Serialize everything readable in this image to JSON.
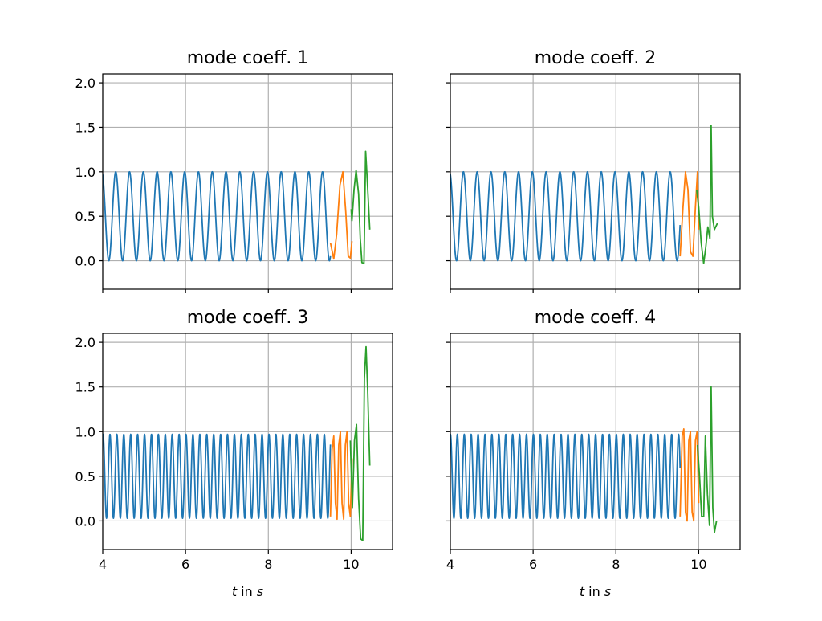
{
  "chart_data": [
    {
      "type": "line",
      "title": "mode coeff. 1",
      "xlabel": "",
      "xlim": [
        4,
        11
      ],
      "ylim": [
        -0.32,
        2.1
      ],
      "xticks": [
        4,
        6,
        8,
        10
      ],
      "yticks": [
        0.0,
        0.5,
        1.0,
        1.5,
        2.0
      ],
      "xtick_labels": [
        "",
        "",
        "",
        ""
      ],
      "ytick_labels": [
        "0.0",
        "0.5",
        "1.0",
        "1.5",
        "2.0"
      ],
      "grid": true,
      "series": [
        {
          "color": "#1f77b4",
          "kind": "sine",
          "t0": 4.0,
          "t1": 9.5,
          "period": 0.333,
          "phase": 0.28,
          "min": 0.0,
          "max": 1.0
        },
        {
          "color": "#ff7f0e",
          "kind": "points",
          "x": [
            9.5,
            9.58,
            9.65,
            9.73,
            9.8,
            9.87,
            9.93,
            9.98,
            10.02
          ],
          "y": [
            0.2,
            0.02,
            0.3,
            0.85,
            1.0,
            0.55,
            0.05,
            0.03,
            0.22
          ]
        },
        {
          "color": "#2ca02c",
          "kind": "points",
          "x": [
            10.0,
            10.02,
            10.07,
            10.12,
            10.18,
            10.22,
            10.26,
            10.31,
            10.35,
            10.39,
            10.45
          ],
          "y": [
            0.58,
            0.45,
            0.8,
            1.02,
            0.75,
            0.25,
            -0.02,
            -0.03,
            1.23,
            0.9,
            0.35
          ]
        }
      ]
    },
    {
      "type": "line",
      "title": "mode coeff. 2",
      "xlabel": "",
      "xlim": [
        4,
        11
      ],
      "ylim": [
        -0.32,
        2.1
      ],
      "xticks": [
        4,
        6,
        8,
        10
      ],
      "yticks": [
        0.0,
        0.5,
        1.0,
        1.5,
        2.0
      ],
      "xtick_labels": [
        "",
        "",
        "",
        ""
      ],
      "ytick_labels": [
        "",
        "",
        "",
        "",
        ""
      ],
      "grid": true,
      "series": [
        {
          "color": "#1f77b4",
          "kind": "sine",
          "t0": 4.0,
          "t1": 9.55,
          "period": 0.333,
          "phase": 0.25,
          "min": 0.0,
          "max": 1.0
        },
        {
          "color": "#ff7f0e",
          "kind": "points",
          "x": [
            9.55,
            9.62,
            9.68,
            9.74,
            9.8,
            9.86,
            9.92,
            9.97,
            10.0
          ],
          "y": [
            0.05,
            0.6,
            1.0,
            0.8,
            0.1,
            0.05,
            0.6,
            1.0,
            0.35
          ]
        },
        {
          "color": "#2ca02c",
          "kind": "points",
          "x": [
            9.95,
            10.0,
            10.06,
            10.12,
            10.17,
            10.22,
            10.27,
            10.3,
            10.33,
            10.38,
            10.45
          ],
          "y": [
            0.8,
            0.6,
            0.2,
            -0.03,
            0.15,
            0.38,
            0.25,
            1.52,
            0.5,
            0.35,
            0.42
          ]
        }
      ]
    },
    {
      "type": "line",
      "title": "mode coeff. 3",
      "xlabel": "t in s",
      "xlim": [
        4,
        11
      ],
      "ylim": [
        -0.32,
        2.1
      ],
      "xticks": [
        4,
        6,
        8,
        10
      ],
      "yticks": [
        0.0,
        0.5,
        1.0,
        1.5,
        2.0
      ],
      "xtick_labels": [
        "4",
        "6",
        "8",
        "10"
      ],
      "ytick_labels": [
        "0.0",
        "0.5",
        "1.0",
        "1.5",
        "2.0"
      ],
      "grid": true,
      "series": [
        {
          "color": "#1f77b4",
          "kind": "sine",
          "t0": 4.0,
          "t1": 9.5,
          "period": 0.167,
          "phase": 0.0,
          "min": 0.03,
          "max": 0.97
        },
        {
          "color": "#ff7f0e",
          "kind": "points",
          "x": [
            9.5,
            9.54,
            9.58,
            9.62,
            9.66,
            9.7,
            9.74,
            9.78,
            9.82,
            9.86,
            9.9,
            9.94,
            9.98,
            10.02
          ],
          "y": [
            0.05,
            0.8,
            0.95,
            0.2,
            0.02,
            0.85,
            1.0,
            0.2,
            0.02,
            0.85,
            1.0,
            0.2,
            0.05,
            0.7
          ]
        },
        {
          "color": "#2ca02c",
          "kind": "points",
          "x": [
            9.98,
            10.03,
            10.08,
            10.13,
            10.18,
            10.23,
            10.28,
            10.32,
            10.36,
            10.4,
            10.45
          ],
          "y": [
            0.9,
            0.15,
            0.9,
            1.08,
            0.25,
            -0.2,
            -0.22,
            1.6,
            1.95,
            1.45,
            0.62
          ]
        }
      ]
    },
    {
      "type": "line",
      "title": "mode coeff. 4",
      "xlabel": "t in s",
      "xlim": [
        4,
        11
      ],
      "ylim": [
        -0.32,
        2.1
      ],
      "xticks": [
        4,
        6,
        8,
        10
      ],
      "yticks": [
        0.0,
        0.5,
        1.0,
        1.5,
        2.0
      ],
      "xtick_labels": [
        "4",
        "6",
        "8",
        "10"
      ],
      "ytick_labels": [
        "",
        "",
        "",
        "",
        ""
      ],
      "grid": true,
      "series": [
        {
          "color": "#1f77b4",
          "kind": "sine",
          "t0": 4.0,
          "t1": 9.55,
          "period": 0.167,
          "phase": 0.2,
          "min": 0.03,
          "max": 0.97
        },
        {
          "color": "#ff7f0e",
          "kind": "points",
          "x": [
            9.55,
            9.6,
            9.64,
            9.68,
            9.72,
            9.76,
            9.8,
            9.84,
            9.88,
            9.92,
            9.96,
            10.0
          ],
          "y": [
            0.05,
            0.95,
            1.03,
            0.1,
            0.0,
            0.9,
            1.0,
            0.1,
            0.0,
            0.9,
            1.0,
            0.2
          ]
        },
        {
          "color": "#2ca02c",
          "kind": "points",
          "x": [
            9.97,
            10.02,
            10.07,
            10.12,
            10.16,
            10.21,
            10.26,
            10.3,
            10.34,
            10.38,
            10.43
          ],
          "y": [
            0.85,
            0.5,
            0.05,
            0.05,
            0.95,
            0.3,
            -0.05,
            1.5,
            0.15,
            -0.13,
            0.0
          ]
        }
      ]
    }
  ]
}
